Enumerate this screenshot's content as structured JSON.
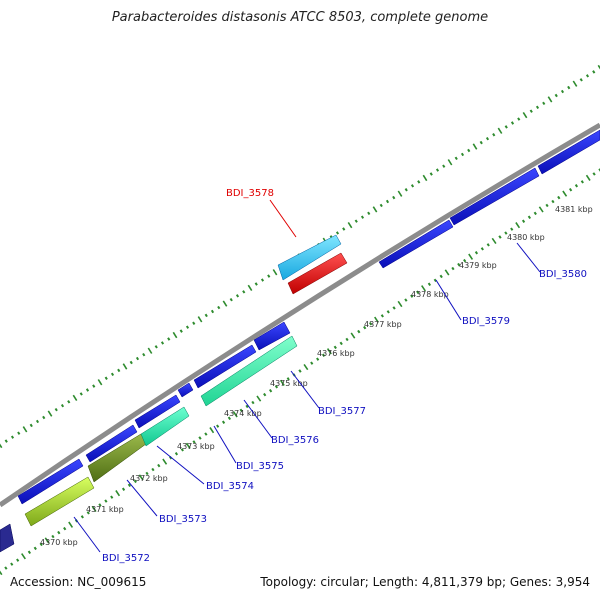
{
  "title": "Parabacteroides distasonis ATCC 8503, complete genome",
  "footer": {
    "accession": "Accession: NC_009615",
    "topology": "Topology: circular; Length: 4,811,379 bp; Genes: 3,954"
  },
  "colors": {
    "backbone": "#8c8c8c",
    "tick_dots": "#2e8b2e",
    "cds": "#0a12d8",
    "label_blue": "#1010c0",
    "label_red": "#e00000"
  },
  "kbp_labels": [
    "4370 kbp",
    "4371 kbp",
    "4372 kbp",
    "4373 kbp",
    "4374 kbp",
    "4375 kbp",
    "4376 kbp",
    "4377 kbp",
    "4378 kbp",
    "4379 kbp",
    "4380 kbp",
    "4381 kbp"
  ],
  "gene_labels": [
    {
      "name": "BDI_3572",
      "color": "#1010c0"
    },
    {
      "name": "BDI_3573",
      "color": "#1010c0"
    },
    {
      "name": "BDI_3574",
      "color": "#1010c0"
    },
    {
      "name": "BDI_3575",
      "color": "#1010c0"
    },
    {
      "name": "BDI_3576",
      "color": "#1010c0"
    },
    {
      "name": "BDI_3577",
      "color": "#1010c0"
    },
    {
      "name": "BDI_3578",
      "color": "#e00000"
    },
    {
      "name": "BDI_3579",
      "color": "#1010c0"
    },
    {
      "name": "BDI_3580",
      "color": "#1010c0"
    }
  ]
}
